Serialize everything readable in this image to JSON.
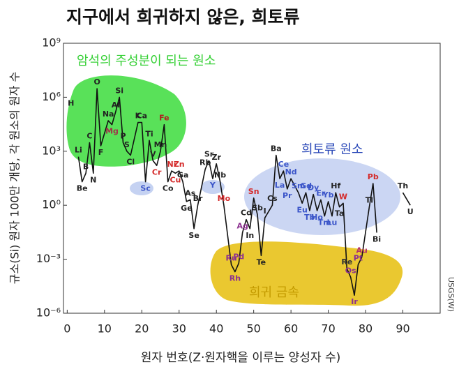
{
  "chart_data": {
    "type": "line",
    "title": "지구에서 희귀하지 않은, 희토류",
    "x_label": "원자 번호(Z·원자핵을 이루는 양성자 수)",
    "y_label": "규소(Si) 원자 100만 개당, 각 원소의 원자 수",
    "credit": "USGS(W)",
    "log_y": true,
    "xlim": [
      -1,
      100
    ],
    "xticks": [
      0,
      10,
      20,
      30,
      40,
      50,
      60,
      70,
      80,
      90
    ],
    "ylim": [
      1e-06,
      1000000000
    ],
    "yticks": [
      {
        "value": 1e-06,
        "label": "10⁻⁶"
      },
      {
        "value": 0.001,
        "label": "10⁻³"
      },
      {
        "value": 1,
        "label": "10⁰"
      },
      {
        "value": 1000,
        "label": "10³"
      },
      {
        "value": 1000000,
        "label": "10⁶"
      },
      {
        "value": 1000000000,
        "label": "10⁹"
      }
    ],
    "line_color": "#111111",
    "annotations": [
      {
        "text": "암석의 주성분이 되는 원소",
        "color": "#35d035"
      },
      {
        "text": "희토류 원소",
        "color": "#2a48b8"
      },
      {
        "text": "희귀 금속",
        "color": "#c49b00"
      }
    ],
    "x": [
      1,
      2,
      3,
      4,
      5,
      6,
      7,
      8,
      9,
      11,
      12,
      13,
      14,
      15,
      16,
      17,
      19,
      20,
      21,
      22,
      23,
      24,
      25,
      26,
      27,
      28,
      29,
      30,
      31,
      32,
      33,
      34,
      35,
      37,
      38,
      39,
      40,
      41,
      42,
      44,
      45,
      46,
      47,
      48,
      49,
      50,
      51,
      52,
      53,
      55,
      56,
      57,
      58,
      59,
      60,
      62,
      63,
      64,
      65,
      66,
      67,
      68,
      69,
      70,
      71,
      72,
      73,
      74,
      75,
      76,
      77,
      78,
      79,
      81,
      82,
      83,
      84,
      90,
      92
    ],
    "series": [
      {
        "values": [
          200000,
          null,
          500,
          20,
          60,
          3000,
          60,
          3000000,
          2000,
          50000,
          30000,
          160000,
          1000000,
          3000,
          1000,
          600,
          40000,
          40000,
          20,
          4000,
          300,
          160,
          1000,
          30000,
          20,
          80,
          60,
          80,
          20,
          1.6,
          2,
          0.05,
          1,
          100,
          300,
          30,
          200,
          20,
          1,
          0.0005,
          0.0002,
          0.0006,
          0.03,
          0.16,
          0.05,
          2.5,
          0.3,
          0.0016,
          0.2,
          1,
          600,
          30,
          80,
          8,
          30,
          5,
          1.3,
          5,
          0.5,
          4,
          0.5,
          2,
          0.25,
          1.6,
          0.25,
          5,
          0.8,
          1.3,
          0.0003,
          0.0001,
          1e-05,
          0.0005,
          0.0013,
          0.8,
          16,
          0.03,
          null,
          5,
          1
        ]
      }
    ],
    "symbols": [
      "H",
      null,
      "Li",
      "Be",
      "B",
      "C",
      "N",
      "O",
      "F",
      "Na",
      "Mg",
      "Al",
      "Si",
      "P",
      "S",
      "Cl",
      "K",
      "Ca",
      "Sc",
      "Ti",
      "V",
      "Cr",
      "Mn",
      "Fe",
      "Co",
      "Ni",
      "Cu",
      "Zn",
      "Ga",
      "Ge",
      "As",
      "Se",
      "Br",
      "Rb",
      "Sr",
      "Y",
      "Zr",
      "Nb",
      "Mo",
      "Ru",
      "Rh",
      "Pd",
      "Ag",
      "Cd",
      "In",
      "Sn",
      "Sb",
      "Te",
      "I",
      "Cs",
      "Ba",
      "La",
      "Ce",
      "Pr",
      "Nd",
      "Sm",
      "Eu",
      "Gd",
      "Tb",
      "Dy",
      "Ho",
      "Er",
      "Tm",
      "Yb",
      "Lu",
      "Hf",
      "Ta",
      "W",
      "Re",
      "Os",
      "Ir",
      "Pt",
      "Au",
      "Tl",
      "Pb",
      "Bi",
      null,
      "Th",
      "U"
    ],
    "symbol_colors": [
      "#222",
      null,
      "#222",
      "#222",
      "#222",
      "#222",
      "#222",
      "#222",
      "#222",
      "#222",
      "#a0324a",
      "#222",
      "#222",
      "#222",
      "#222",
      "#222",
      "#222",
      "#222",
      "#3b55c9",
      "#222",
      "#222",
      "#d42a2a",
      "#222",
      "#b02020",
      "#222",
      "#d42a2a",
      "#d42a2a",
      "#d42a2a",
      "#222",
      "#222",
      "#222",
      "#222",
      "#222",
      "#222",
      "#222",
      "#3b55c9",
      "#222",
      "#222",
      "#d42a2a",
      "#8b2f8f",
      "#8b2f8f",
      "#8b2f8f",
      "#8b2f8f",
      "#222",
      "#222",
      "#d42a2a",
      "#222",
      "#222",
      "#222",
      "#222",
      "#222",
      "#3b55c9",
      "#3b55c9",
      "#3b55c9",
      "#3b55c9",
      "#3b55c9",
      "#3b55c9",
      "#3b55c9",
      "#3b55c9",
      "#3b55c9",
      "#3b55c9",
      "#3b55c9",
      "#3b55c9",
      "#3b55c9",
      "#3b55c9",
      "#222",
      "#222",
      "#d42a2a",
      "#333",
      "#8b2f8f",
      "#8b2f8f",
      "#8b2f8f",
      "#b0306a",
      "#222",
      "#d42a2a",
      "#222",
      null,
      "#222",
      "#222"
    ]
  }
}
